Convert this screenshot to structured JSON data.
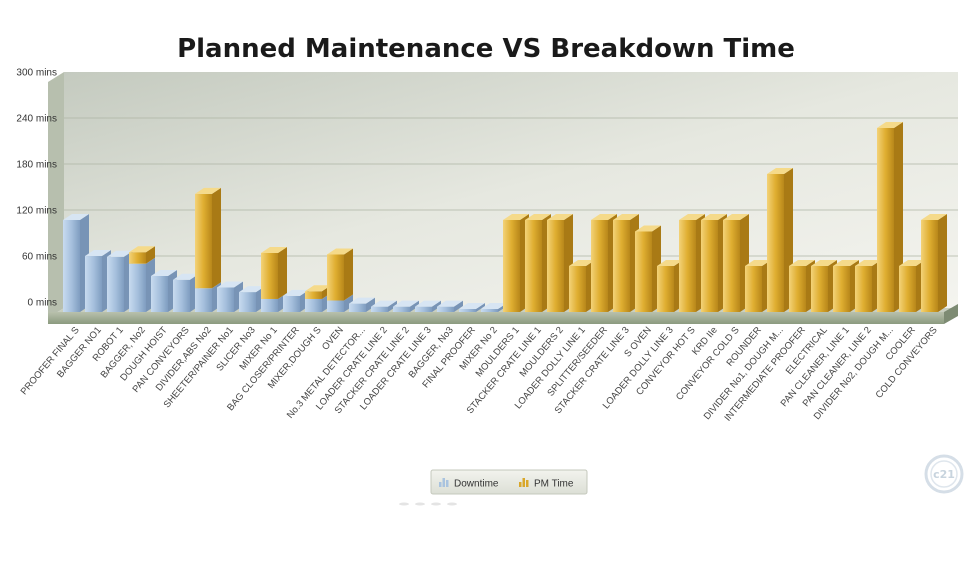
{
  "chart_data": {
    "type": "bar",
    "title": "Planned Maintenance  VS  Breakdown Time",
    "xlabel": "",
    "ylabel": "",
    "ylim": [
      0,
      300
    ],
    "y_tick_labels": [
      "0 mins",
      "60 mins",
      "120 mins",
      "180 mins",
      "240 mins",
      "300 mins"
    ],
    "y_tick_values": [
      0,
      60,
      120,
      180,
      240,
      300
    ],
    "grid": true,
    "legend_position": "bottom-center",
    "stacked": true,
    "categories": [
      "PROOFER FINAL S",
      "BAGGER NO1",
      "ROBOT 1",
      "BAGGER, No2",
      "DOUGH HOIST",
      "PAN CONVEYORS",
      "DIVIDER,ABS No2",
      "SHEETER/PAINER No1",
      "SLICER No3",
      "MIXER No 1",
      "BAG CLOSER/PRINTER",
      "MIXER,DOUGH S",
      "OVEN",
      "No.3 METAL DETECTOR...",
      "LOADER CRATE LINE 2",
      "STACKER CRATE LINE 2",
      "LOADER CRATE LINE 3",
      "BAGGER, No3",
      "FINAL PROOFER",
      "MIXER No 2",
      "MOULDERS 1",
      "STACKER CRATE LINE 1",
      "MOULDERS 2",
      "LOADER DOLLY LINE 1",
      "SPLITTER/SEEDER",
      "STACKER CRATE LINE 3",
      "S OVEN",
      "LOADER DOLLY LINE 3",
      "CONVEYOR HOT S",
      "KRD IIe",
      "CONVEYOR COLD S",
      "ROUNDER",
      "DIVIDER No1, DOUGH M...",
      "INTERMEDIATE PROOFER",
      "ELECTRICAL",
      "PAN CLEANER, LINE 1",
      "PAN CLEANER, LINE 2",
      "DIVIDER No2, DOUGH M...",
      "COOLER",
      "COLD CONVEYORS"
    ],
    "series": [
      {
        "name": "Downtime",
        "color": "#a9c3df",
        "values": [
          120,
          73,
          72,
          63,
          47,
          42,
          31,
          32,
          26,
          17,
          21,
          17,
          15,
          11,
          7,
          7,
          7,
          7,
          3,
          3,
          0,
          0,
          0,
          0,
          0,
          0,
          0,
          0,
          0,
          0,
          0,
          0,
          0,
          0,
          0,
          0,
          0,
          0,
          0,
          0
        ]
      },
      {
        "name": "PM Time",
        "color": "#d9a72a",
        "values": [
          0,
          0,
          0,
          15,
          0,
          0,
          123,
          0,
          0,
          60,
          0,
          10,
          60,
          0,
          0,
          0,
          0,
          0,
          0,
          0,
          120,
          120,
          120,
          60,
          120,
          120,
          105,
          60,
          120,
          120,
          120,
          60,
          180,
          60,
          60,
          60,
          60,
          240,
          60,
          120
        ]
      }
    ]
  },
  "legend": {
    "downtime_label": "Downtime",
    "pm_label": "PM Time",
    "downtime_icon": "bar-chart-icon",
    "pm_icon": "bar-chart-icon"
  },
  "logo": {
    "text": "c21"
  }
}
